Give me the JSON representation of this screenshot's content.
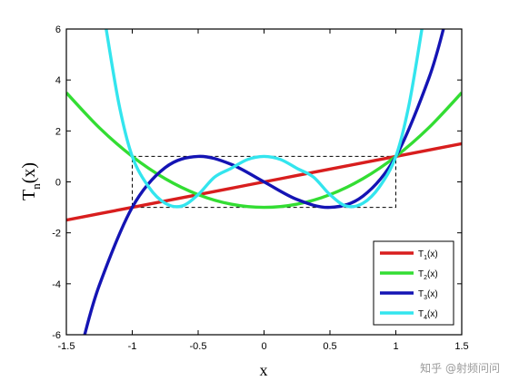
{
  "chart_data": {
    "type": "line",
    "xlabel": "x",
    "ylabel": "T",
    "ylabel_sub": "n",
    "ylabel_suffix": "(x)",
    "xlim": [
      -1.5,
      1.5
    ],
    "ylim": [
      -6,
      6
    ],
    "xticks": [
      -1.5,
      -1,
      -0.5,
      0,
      0.5,
      1,
      1.5
    ],
    "xtick_labels": [
      "-1.5",
      "-1",
      "-0.5",
      "0",
      "0.5",
      "1",
      "1.5"
    ],
    "yticks": [
      -6,
      -4,
      -2,
      0,
      2,
      4,
      6
    ],
    "ytick_labels": [
      "-6",
      "-4",
      "-2",
      "0",
      "2",
      "4",
      "6"
    ],
    "grid": false,
    "legend_position": "bottom-right",
    "dashed_box": {
      "x": [
        -1,
        1
      ],
      "y": [
        -1,
        1
      ]
    },
    "series": [
      {
        "name": "T",
        "sub": "1",
        "suffix": "(x)",
        "color": "#d81e1e",
        "x": [
          -1.5,
          -1.25,
          -1.0,
          -0.75,
          -0.5,
          -0.25,
          0.0,
          0.25,
          0.5,
          0.75,
          1.0,
          1.25,
          1.5
        ],
        "y": [
          -1.5,
          -1.25,
          -1.0,
          -0.75,
          -0.5,
          -0.25,
          0.0,
          0.25,
          0.5,
          0.75,
          1.0,
          1.25,
          1.5
        ]
      },
      {
        "name": "T",
        "sub": "2",
        "suffix": "(x)",
        "color": "#33dd33",
        "x": [
          -1.5,
          -1.25,
          -1.0,
          -0.75,
          -0.5,
          -0.25,
          0.0,
          0.25,
          0.5,
          0.75,
          1.0,
          1.25,
          1.5
        ],
        "y": [
          3.5,
          2.125,
          1.0,
          0.125,
          -0.5,
          -0.875,
          -1.0,
          -0.875,
          -0.5,
          0.125,
          1.0,
          2.125,
          3.5
        ]
      },
      {
        "name": "T",
        "sub": "3",
        "suffix": "(x)",
        "color": "#1414b4",
        "x": [
          -1.375,
          -1.25,
          -1.0,
          -0.75,
          -0.5,
          -0.25,
          0.0,
          0.25,
          0.5,
          0.75,
          1.0,
          1.25,
          1.375
        ],
        "y": [
          -6.27,
          -4.06,
          -1.0,
          0.56,
          1.0,
          0.69,
          0.0,
          -0.69,
          -1.0,
          -0.56,
          1.0,
          4.06,
          6.27
        ]
      },
      {
        "name": "T",
        "sub": "4",
        "suffix": "(x)",
        "color": "#33e5ee",
        "x": [
          -1.2,
          -1.1,
          -1.0,
          -0.875,
          -0.75,
          -0.625,
          -0.5,
          -0.375,
          -0.25,
          -0.125,
          0.0,
          0.125,
          0.25,
          0.375,
          0.5,
          0.625,
          0.75,
          0.875,
          1.0,
          1.1,
          1.2
        ],
        "y": [
          6.07,
          3.03,
          1.0,
          -0.2,
          -0.84,
          -0.95,
          -0.5,
          0.19,
          0.53,
          0.88,
          1.0,
          0.88,
          0.53,
          0.19,
          -0.5,
          -0.95,
          -0.84,
          -0.2,
          1.0,
          3.03,
          6.07
        ]
      }
    ]
  },
  "watermark": "知乎 @射频问问"
}
